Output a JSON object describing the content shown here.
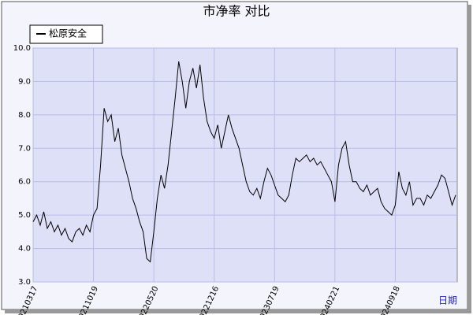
{
  "chart_data": {
    "type": "line",
    "title": "市净率  对比",
    "xlabel": "日期",
    "categories": [
      "20210317",
      null,
      null,
      null,
      null,
      null,
      null,
      null,
      null,
      null,
      null,
      null,
      null,
      null,
      null,
      null,
      null,
      "20211019",
      null,
      null,
      null,
      null,
      null,
      null,
      null,
      null,
      null,
      null,
      null,
      null,
      null,
      null,
      null,
      null,
      "20220520",
      null,
      null,
      null,
      null,
      null,
      null,
      null,
      null,
      null,
      null,
      null,
      null,
      null,
      null,
      null,
      null,
      "20221216",
      null,
      null,
      null,
      null,
      null,
      null,
      null,
      null,
      null,
      null,
      null,
      null,
      null,
      null,
      null,
      null,
      "20230719",
      null,
      null,
      null,
      null,
      null,
      null,
      null,
      null,
      null,
      null,
      null,
      null,
      null,
      null,
      null,
      null,
      "20240221",
      null,
      null,
      null,
      null,
      null,
      null,
      null,
      null,
      null,
      null,
      null,
      null,
      null,
      null,
      null,
      null,
      "20240918",
      null,
      null,
      null,
      null,
      null,
      null,
      null,
      null,
      null,
      null,
      null,
      null,
      null,
      null,
      null,
      null,
      null
    ],
    "series": [
      {
        "name": "松原安全",
        "color": "#000000",
        "values": [
          4.8,
          5.0,
          4.7,
          5.1,
          4.6,
          4.8,
          4.5,
          4.7,
          4.4,
          4.6,
          4.3,
          4.2,
          4.5,
          4.6,
          4.4,
          4.7,
          4.5,
          5.0,
          5.2,
          6.5,
          8.2,
          7.8,
          8.0,
          7.2,
          7.6,
          6.8,
          6.4,
          6.0,
          5.5,
          5.2,
          4.8,
          4.5,
          3.7,
          3.6,
          4.5,
          5.5,
          6.2,
          5.8,
          6.5,
          7.5,
          8.5,
          9.6,
          9.0,
          8.2,
          9.0,
          9.4,
          8.8,
          9.5,
          8.5,
          7.8,
          7.5,
          7.3,
          7.7,
          7.0,
          7.5,
          8.0,
          7.6,
          7.3,
          7.0,
          6.5,
          6.0,
          5.7,
          5.6,
          5.8,
          5.5,
          6.0,
          6.4,
          6.2,
          5.9,
          5.6,
          5.5,
          5.4,
          5.6,
          6.2,
          6.7,
          6.6,
          6.7,
          6.8,
          6.6,
          6.7,
          6.5,
          6.6,
          6.4,
          6.2,
          6.0,
          5.4,
          6.5,
          7.0,
          7.2,
          6.5,
          6.0,
          6.0,
          5.8,
          5.7,
          5.9,
          5.6,
          5.7,
          5.8,
          5.4,
          5.2,
          5.1,
          5.0,
          5.3,
          6.3,
          5.8,
          5.6,
          6.0,
          5.3,
          5.5,
          5.5,
          5.3,
          5.6,
          5.5,
          5.7,
          5.9,
          6.2,
          6.1,
          5.7,
          5.3,
          5.6
        ]
      }
    ],
    "ylim": [
      3,
      10
    ],
    "yticks": [
      {
        "value": 3,
        "label": "3.0"
      },
      {
        "value": 4,
        "label": "4.0"
      },
      {
        "value": 5,
        "label": "5.0"
      },
      {
        "value": 6,
        "label": "6.0"
      },
      {
        "value": 7,
        "label": "7.0"
      },
      {
        "value": 8,
        "label": "8.0"
      },
      {
        "value": 9,
        "label": "9.0"
      },
      {
        "value": 10,
        "label": "10.0"
      }
    ],
    "grid": true,
    "legend": "upper left"
  }
}
